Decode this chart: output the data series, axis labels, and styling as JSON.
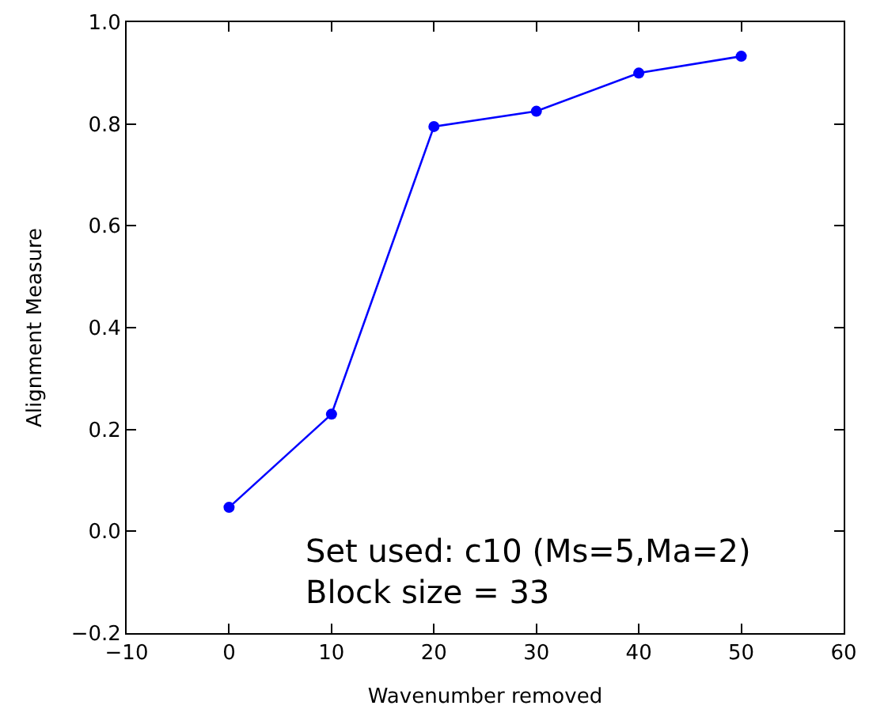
{
  "chart_data": {
    "type": "line",
    "xlabel": "Wavenumber removed",
    "ylabel": "Alignment Measure",
    "x": [
      0,
      10,
      20,
      30,
      40,
      50
    ],
    "series": [
      {
        "color": "#0000ff",
        "values": [
          0.047,
          0.23,
          0.795,
          0.825,
          0.9,
          0.933
        ]
      }
    ],
    "xlim": [
      -10,
      60
    ],
    "xticks": [
      "−10",
      0,
      10,
      20,
      30,
      40,
      50,
      60
    ],
    "ylim": [
      -0.2,
      1.0
    ],
    "yticks": [
      {
        "value": -0.2,
        "label": "−0.2"
      },
      {
        "value": 0,
        "label": "0.0"
      },
      {
        "value": 0.2,
        "label": "0.2"
      },
      {
        "value": 0.4,
        "label": "0.4"
      },
      {
        "value": 0.6,
        "label": "0.6"
      },
      {
        "value": 0.8,
        "label": "0.8"
      },
      {
        "value": 1.0,
        "label": "1.0"
      }
    ],
    "marker": "circle",
    "line_style": "solid",
    "legend": false,
    "annotations": [
      "Set used: c10 (Ms=5,Ma=2)\nBlock size = 33"
    ]
  }
}
